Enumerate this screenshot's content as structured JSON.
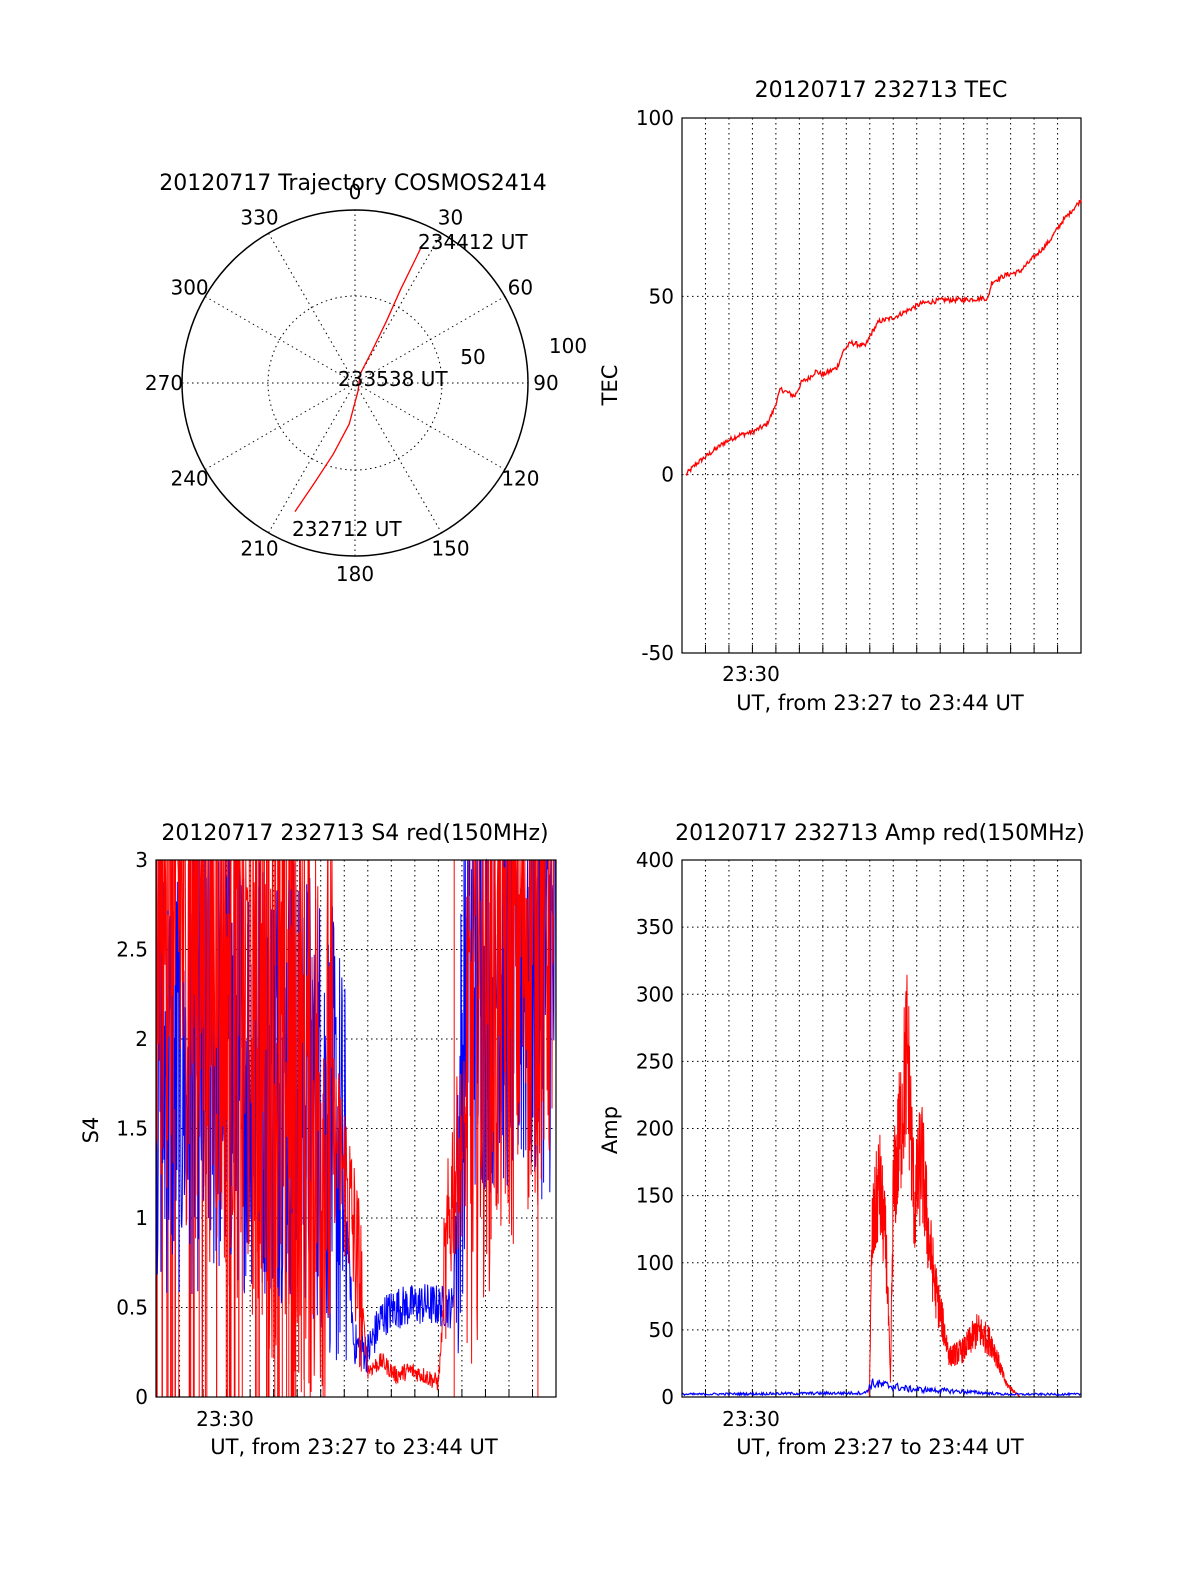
{
  "chart_data": [
    {
      "type": "polar",
      "title": "20120717 Trajectory COSMOS2414",
      "azimuth_ticks": [
        "0",
        "30",
        "60",
        "90",
        "120",
        "150",
        "180",
        "210",
        "240",
        "270",
        "300",
        "330"
      ],
      "radial_ticks": [
        "50",
        "100"
      ],
      "radial_max": 100,
      "series": [
        {
          "color": "#ff0000",
          "points": [
            [
              205,
              82
            ],
            [
              202,
              62
            ],
            [
              197,
              43
            ],
            [
              188,
              24
            ],
            [
              160,
              5
            ],
            [
              30,
              6
            ],
            [
              28,
              20
            ],
            [
              27,
              40
            ],
            [
              26,
              60
            ],
            [
              26,
              80
            ],
            [
              26,
              89
            ]
          ]
        }
      ],
      "annotations": [
        {
          "text": "234412 UT",
          "az": 26,
          "r": 89
        },
        {
          "text": "233538 UT",
          "az": 90,
          "r": 1
        },
        {
          "text": "232712 UT",
          "az": 205,
          "r": 82
        }
      ]
    },
    {
      "type": "line",
      "title": "20120717 232713 TEC",
      "xlabel": "UT, from 23:27 to 23:44 UT",
      "ylabel": "TEC",
      "xlim": [
        23.45,
        23.7333
      ],
      "ylim": [
        -50,
        100
      ],
      "yticks": [
        "100",
        "50",
        "0",
        "-50"
      ],
      "xticks": [
        "23:30"
      ],
      "series": [
        {
          "color": "#ff0000",
          "x": [
            23.4528,
            23.46,
            23.47,
            23.48,
            23.49,
            23.5,
            23.51,
            23.515,
            23.52,
            23.53,
            23.535,
            23.54,
            23.545,
            23.55,
            23.56,
            23.565,
            23.57,
            23.58,
            23.585,
            23.59,
            23.6,
            23.61,
            23.62,
            23.635,
            23.65,
            23.665,
            23.667,
            23.67,
            23.68,
            23.69,
            23.7,
            23.71,
            23.72,
            23.7333
          ],
          "y": [
            0,
            3,
            6,
            9,
            11,
            12,
            14,
            18,
            24,
            22,
            26,
            27,
            29,
            28,
            30,
            35,
            37,
            36,
            40,
            43,
            44,
            46,
            48,
            49,
            49,
            49.5,
            49,
            54,
            56,
            57,
            61,
            65,
            71,
            77
          ]
        }
      ]
    },
    {
      "type": "line",
      "title": "20120717 232713 S4 red(150MHz)",
      "xlabel": "UT, from 23:27 to 23:44 UT",
      "ylabel": "S4",
      "xlim": [
        23.45,
        23.7333
      ],
      "ylim": [
        0,
        3
      ],
      "yticks": [
        "3",
        "2.5",
        "2",
        "1.5",
        "1",
        "0.5",
        "0"
      ],
      "xticks": [
        "23:30"
      ],
      "series": [
        {
          "name": "",
          "color": "#ff0000",
          "x": [
            23.45,
            23.575,
            23.585,
            23.59,
            23.595,
            23.6,
            23.61,
            23.62,
            23.63,
            23.64,
            23.65,
            23.66,
            23.67,
            23.68,
            23.7333
          ],
          "y": [
            3,
            1.5,
            1.2,
            0.9,
            0.6,
            0.15,
            0.2,
            0.12,
            0.15,
            0.12,
            0.08,
            1.2,
            1.5,
            2.3,
            3
          ]
        },
        {
          "name": "",
          "color": "#0000ff",
          "x": [
            23.45,
            23.5,
            23.55,
            23.57,
            23.58,
            23.585,
            23.59,
            23.6,
            23.61,
            23.62,
            23.64,
            23.66,
            23.67,
            23.7333
          ],
          "y": [
            1.8,
            1.9,
            1.8,
            1.6,
            1.3,
            1.0,
            0.3,
            0.25,
            0.45,
            0.5,
            0.52,
            0.5,
            2.4,
            2.4
          ]
        }
      ]
    },
    {
      "type": "line",
      "title": "20120717 232713 Amp red(150MHz)",
      "xlabel": "UT, from 23:27 to 23:44 UT",
      "ylabel": "Amp",
      "xlim": [
        23.45,
        23.7333
      ],
      "ylim": [
        0,
        400
      ],
      "yticks": [
        "400",
        "350",
        "300",
        "250",
        "200",
        "150",
        "100",
        "50",
        "0"
      ],
      "xticks": [
        "23:30"
      ],
      "series": [
        {
          "name": "",
          "color": "#ff0000",
          "x": [
            23.583,
            23.585,
            23.59,
            23.595,
            23.598,
            23.6,
            23.605,
            23.61,
            23.615,
            23.62,
            23.625,
            23.63,
            23.64,
            23.65,
            23.66,
            23.67,
            23.68,
            23.69
          ],
          "y": [
            0,
            120,
            160,
            110,
            10,
            150,
            200,
            260,
            140,
            180,
            120,
            80,
            30,
            35,
            50,
            40,
            10,
            0
          ]
        },
        {
          "name": "",
          "color": "#0000ff",
          "x": [
            23.45,
            23.58,
            23.585,
            23.6,
            23.61,
            23.63,
            23.65,
            23.68,
            23.7333
          ],
          "y": [
            2,
            3,
            10,
            8,
            6,
            5,
            4,
            2,
            2
          ]
        }
      ]
    }
  ]
}
